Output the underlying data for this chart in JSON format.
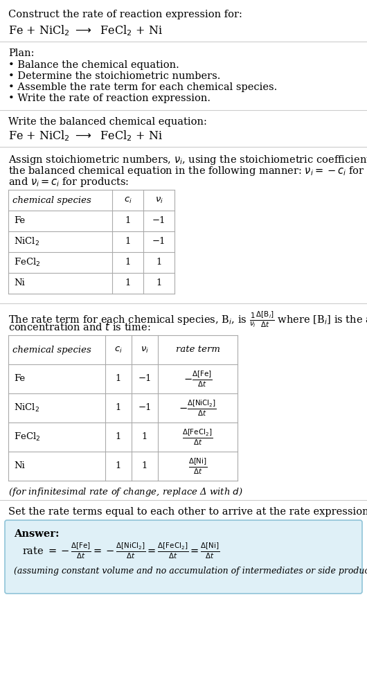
{
  "bg_color": "#ffffff",
  "text_color": "#000000",
  "line_color": "#cccccc",
  "table_line_color": "#aaaaaa",
  "title_line1": "Construct the rate of reaction expression for:",
  "equation_line": "Fe + NiCl$_2$ $\\longrightarrow$  FeCl$_2$ + Ni",
  "plan_header": "Plan:",
  "plan_items": [
    "• Balance the chemical equation.",
    "• Determine the stoichiometric numbers.",
    "• Assemble the rate term for each chemical species.",
    "• Write the rate of reaction expression."
  ],
  "balanced_header": "Write the balanced chemical equation:",
  "balanced_eq": "Fe + NiCl$_2$ $\\longrightarrow$  FeCl$_2$ + Ni",
  "stoich_para": [
    "Assign stoichiometric numbers, $\\nu_i$, using the stoichiometric coefficients, $c_i$, from",
    "the balanced chemical equation in the following manner: $\\nu_i = -c_i$ for reactants",
    "and $\\nu_i = c_i$ for products:"
  ],
  "table1_col_headers": [
    "chemical species",
    "$c_i$",
    "$\\nu_i$"
  ],
  "table1_rows": [
    [
      "Fe",
      "1",
      "−1"
    ],
    [
      "NiCl$_2$",
      "1",
      "−1"
    ],
    [
      "FeCl$_2$",
      "1",
      "1"
    ],
    [
      "Ni",
      "1",
      "1"
    ]
  ],
  "rate_term_para": [
    "The rate term for each chemical species, B$_i$, is $\\frac{1}{\\nu_i}\\frac{\\Delta[\\mathrm{B}_i]}{\\Delta t}$ where [B$_i$] is the amount",
    "concentration and $t$ is time:"
  ],
  "table2_col_headers": [
    "chemical species",
    "$c_i$",
    "$\\nu_i$",
    "rate term"
  ],
  "table2_rows": [
    [
      "Fe",
      "1",
      "−1",
      "$-\\frac{\\Delta[\\mathrm{Fe}]}{\\Delta t}$"
    ],
    [
      "NiCl$_2$",
      "1",
      "−1",
      "$-\\frac{\\Delta[\\mathrm{NiCl_2}]}{\\Delta t}$"
    ],
    [
      "FeCl$_2$",
      "1",
      "1",
      "$\\frac{\\Delta[\\mathrm{FeCl_2}]}{\\Delta t}$"
    ],
    [
      "Ni",
      "1",
      "1",
      "$\\frac{\\Delta[\\mathrm{Ni}]}{\\Delta t}$"
    ]
  ],
  "infinitesimal_note": "(for infinitesimal rate of change, replace Δ with $d$)",
  "rate_expr_header": "Set the rate terms equal to each other to arrive at the rate expression:",
  "answer_box_color": "#dff0f7",
  "answer_box_edge": "#90c4d8",
  "answer_label": "Answer:",
  "rate_expression_parts": [
    "rate $= -\\frac{\\Delta[\\mathrm{Fe}]}{\\Delta t} = -\\frac{\\Delta[\\mathrm{NiCl_2}]}{\\Delta t} = \\frac{\\Delta[\\mathrm{FeCl_2}]}{\\Delta t} = \\frac{\\Delta[\\mathrm{Ni}]}{\\Delta t}$"
  ],
  "assuming_note": "(assuming constant volume and no accumulation of intermediates or side products)"
}
